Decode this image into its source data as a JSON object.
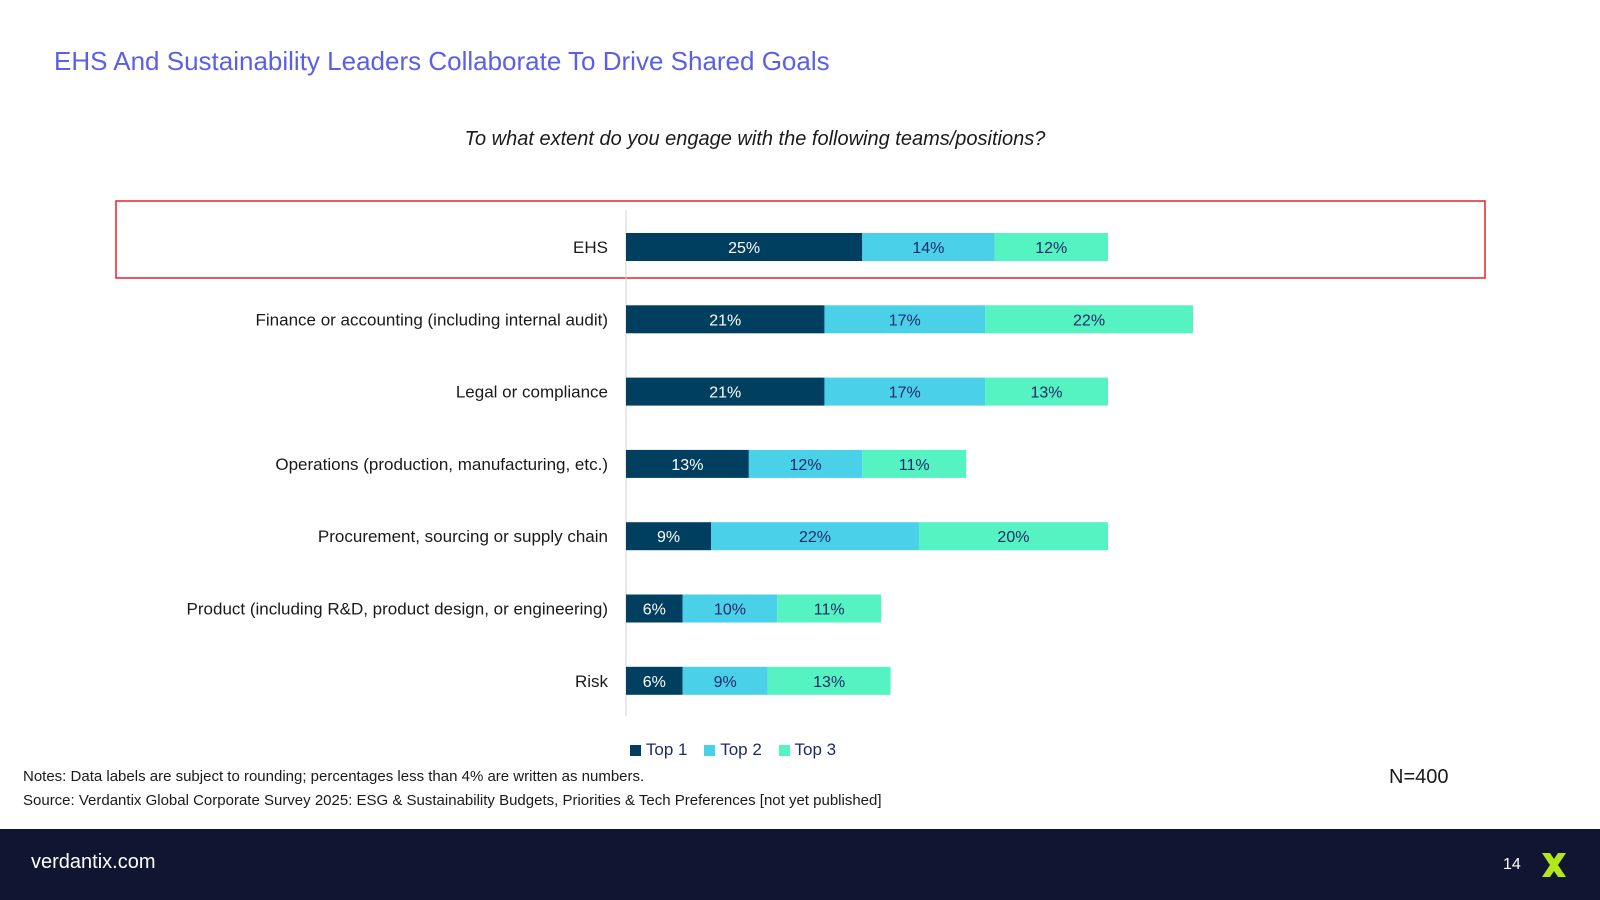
{
  "page": {
    "title": "EHS And Sustainability Leaders Collaborate To Drive Shared Goals",
    "notes": "Notes: Data labels are subject to rounding; percentages less than 4% are written as numbers.",
    "source": "Source: Verdantix Global Corporate Survey 2025: ESG & Sustainability Budgets, Priorities & Tech Preferences [not yet published]",
    "n_value": "N=400",
    "footer_url": "verdantix.com",
    "page_number": "14"
  },
  "colors": {
    "title": "#5b5fe8",
    "top1": "#003f5f",
    "top2": "#4ad0e8",
    "top3": "#55f2c2",
    "highlight": "#e8202a",
    "footer_bg": "#101631",
    "logo": "#b4e61e"
  },
  "chart_data": {
    "type": "bar",
    "orientation": "horizontal",
    "stacked": true,
    "title": "To what extent do you engage with the following teams/positions?",
    "categories": [
      "EHS",
      "Finance or accounting (including internal audit)",
      "Legal or compliance",
      "Operations (production, manufacturing, etc.)",
      "Procurement, sourcing or supply chain",
      "Product (including R&D, product design, or engineering)",
      "Risk"
    ],
    "series": [
      {
        "name": "Top 1",
        "values": [
          25,
          21,
          21,
          13,
          9,
          6,
          6
        ]
      },
      {
        "name": "Top 2",
        "values": [
          14,
          17,
          17,
          12,
          22,
          10,
          9
        ]
      },
      {
        "name": "Top 3",
        "values": [
          12,
          22,
          13,
          11,
          20,
          11,
          13
        ]
      }
    ],
    "value_suffix": "%",
    "legend_position": "bottom",
    "highlighted_category": "EHS",
    "xlabel": "",
    "ylabel": "",
    "xlim": [
      0,
      100
    ]
  }
}
